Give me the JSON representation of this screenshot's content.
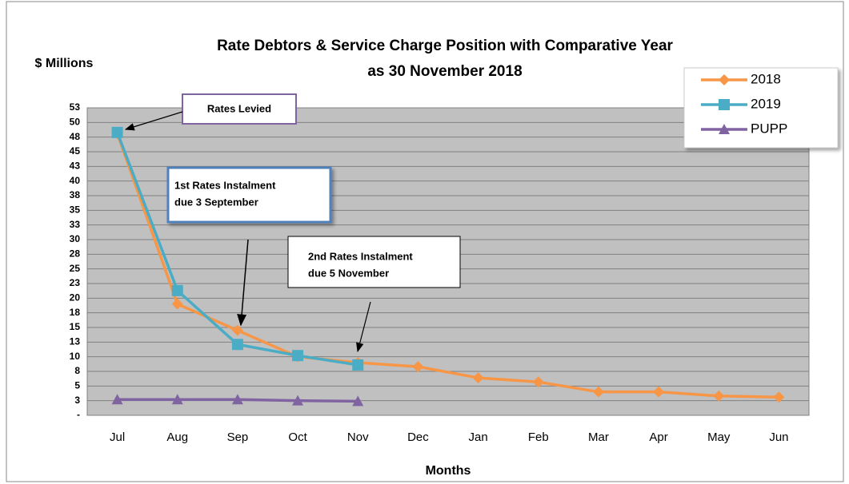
{
  "chart_data": {
    "type": "line",
    "title": [
      "Rate Debtors & Service Charge Position with Comparative Year",
      "as 30 November 2018"
    ],
    "y_label": "$ Millions",
    "x_label": "Months",
    "categories": [
      "Jul",
      "Aug",
      "Sep",
      "Oct",
      "Nov",
      "Dec",
      "Jan",
      "Feb",
      "Mar",
      "Apr",
      "May",
      "Jun"
    ],
    "series": [
      {
        "name": "2018",
        "color": "#f79646",
        "marker": "diamond",
        "values": [
          48.1,
          19.0,
          14.5,
          10.0,
          9.0,
          8.3,
          6.4,
          5.7,
          4.0,
          4.0,
          3.3,
          3.1
        ]
      },
      {
        "name": "2019",
        "color": "#4bacc6",
        "marker": "square",
        "values": [
          48.3,
          21.3,
          12.1,
          10.2,
          8.6,
          null,
          null,
          null,
          null,
          null,
          null,
          null
        ]
      },
      {
        "name": "PUPP",
        "color": "#8064a2",
        "marker": "triangle",
        "values": [
          2.7,
          2.7,
          2.7,
          2.5,
          2.4,
          null,
          null,
          null,
          null,
          null,
          null,
          null
        ]
      }
    ],
    "ylim": [
      0,
      52.5
    ],
    "yticks": [
      {
        "value": 0,
        "label": "-"
      },
      {
        "value": 2.5,
        "label": "3"
      },
      5,
      {
        "value": 7.5,
        "label": "8"
      },
      10,
      {
        "value": 12.5,
        "label": "13"
      },
      15,
      {
        "value": 17.5,
        "label": "18"
      },
      20,
      {
        "value": 22.5,
        "label": "23"
      },
      25,
      {
        "value": 27.5,
        "label": "28"
      },
      30,
      {
        "value": 32.5,
        "label": "33"
      },
      35,
      {
        "value": 37.5,
        "label": "38"
      },
      40,
      {
        "value": 42.5,
        "label": "43"
      },
      45,
      {
        "value": 47.5,
        "label": "48"
      },
      50,
      {
        "value": 52.5,
        "label": "53"
      }
    ],
    "grid": true,
    "legend": "top-right",
    "annotations": [
      {
        "lines": [
          "Rates Levied"
        ]
      },
      {
        "lines": [
          "1st Rates Instalment",
          "due 3 September"
        ]
      },
      {
        "lines": [
          "2nd Rates Instalment",
          "due 5 November"
        ]
      }
    ]
  }
}
